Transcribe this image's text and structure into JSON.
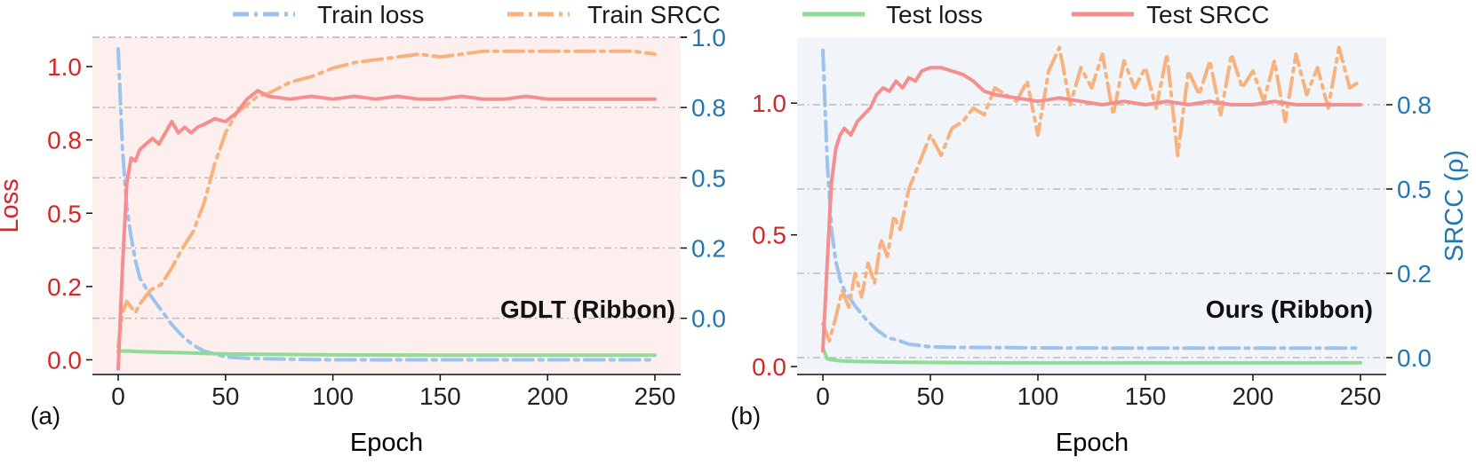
{
  "colors": {
    "train_loss": "#9cc3ee",
    "train_srcc": "#f9b27e",
    "test_loss": "#8fdc96",
    "test_srcc": "#f58f8f",
    "loss_axis": "#d62728",
    "srcc_axis": "#1f77b4",
    "bg_a": "#fcefee",
    "bg_b": "#f1f4f8",
    "gridline": "#bdbdbd"
  },
  "legend": {
    "train_loss": "Train loss",
    "train_srcc": "Train SRCC",
    "test_loss": "Test loss",
    "test_srcc": "Test SRCC"
  },
  "chart_data": [
    {
      "type": "line",
      "panel_label": "(a)",
      "annotation": "GDLT (Ribbon)",
      "xlabel": "Epoch",
      "ylabel_left": "Loss",
      "ylabel_right": "",
      "xlim": [
        -12,
        262
      ],
      "ylim_left": [
        -0.05,
        1.1
      ],
      "ylim_right": [
        -0.2,
        1.0
      ],
      "x_ticks": [
        0,
        50,
        100,
        150,
        200,
        250
      ],
      "left_ticks": [
        "0.0",
        "0.2",
        "0.5",
        "0.8",
        "1.0"
      ],
      "left_tick_values": [
        0.0,
        0.25,
        0.5,
        0.75,
        1.0
      ],
      "right_ticks": [
        "0.0",
        "0.2",
        "0.5",
        "0.8",
        "1.0"
      ],
      "right_tick_values": [
        0.0,
        0.25,
        0.5,
        0.75,
        1.0
      ],
      "grid": "dashed, at right-axis ticks",
      "series": [
        {
          "key": "train_loss",
          "axis": "left",
          "style": "dashdot",
          "x": [
            0,
            2,
            4,
            6,
            8,
            10,
            15,
            20,
            25,
            30,
            35,
            40,
            50,
            60,
            80,
            100,
            150,
            200,
            250
          ],
          "y": [
            1.06,
            0.72,
            0.52,
            0.42,
            0.34,
            0.28,
            0.22,
            0.17,
            0.12,
            0.08,
            0.05,
            0.03,
            0.01,
            0.005,
            0.002,
            0.0,
            0.0,
            0.0,
            0.0
          ]
        },
        {
          "key": "train_srcc",
          "axis": "right",
          "style": "dashdot",
          "x": [
            0,
            2,
            4,
            6,
            8,
            10,
            15,
            20,
            25,
            30,
            35,
            40,
            45,
            50,
            55,
            60,
            65,
            70,
            80,
            90,
            100,
            110,
            120,
            130,
            140,
            150,
            160,
            170,
            180,
            190,
            200,
            210,
            220,
            230,
            240,
            250
          ],
          "y": [
            -0.1,
            0.02,
            0.06,
            0.04,
            0.02,
            0.05,
            0.1,
            0.12,
            0.18,
            0.25,
            0.31,
            0.41,
            0.55,
            0.66,
            0.73,
            0.76,
            0.79,
            0.8,
            0.84,
            0.86,
            0.89,
            0.91,
            0.92,
            0.93,
            0.94,
            0.93,
            0.94,
            0.95,
            0.95,
            0.95,
            0.95,
            0.95,
            0.95,
            0.95,
            0.95,
            0.94
          ]
        },
        {
          "key": "test_loss",
          "axis": "left",
          "style": "solid",
          "x": [
            0,
            5,
            10,
            20,
            30,
            40,
            50,
            100,
            150,
            200,
            250
          ],
          "y": [
            0.03,
            0.03,
            0.028,
            0.026,
            0.024,
            0.022,
            0.02,
            0.017,
            0.016,
            0.016,
            0.016
          ]
        },
        {
          "key": "test_srcc",
          "axis": "right",
          "style": "solid",
          "x": [
            0,
            2,
            4,
            6,
            8,
            10,
            13,
            16,
            19,
            22,
            25,
            28,
            31,
            34,
            37,
            40,
            45,
            50,
            55,
            60,
            65,
            70,
            80,
            90,
            100,
            110,
            120,
            130,
            140,
            150,
            160,
            170,
            180,
            190,
            200,
            210,
            220,
            230,
            240,
            250
          ],
          "y": [
            -0.18,
            0.18,
            0.48,
            0.57,
            0.56,
            0.6,
            0.62,
            0.64,
            0.62,
            0.66,
            0.7,
            0.66,
            0.68,
            0.66,
            0.68,
            0.69,
            0.71,
            0.7,
            0.73,
            0.78,
            0.81,
            0.79,
            0.78,
            0.79,
            0.78,
            0.79,
            0.78,
            0.79,
            0.78,
            0.78,
            0.79,
            0.78,
            0.78,
            0.79,
            0.78,
            0.78,
            0.78,
            0.78,
            0.78,
            0.78
          ]
        }
      ]
    },
    {
      "type": "line",
      "panel_label": "(b)",
      "annotation": "Ours (Ribbon)",
      "xlabel": "Epoch",
      "ylabel_left": "",
      "ylabel_right": "SRCC (ρ)",
      "xlim": [
        -12,
        262
      ],
      "ylim_left": [
        -0.03,
        1.25
      ],
      "ylim_right": [
        -0.05,
        0.95
      ],
      "x_ticks": [
        0,
        50,
        100,
        150,
        200,
        250
      ],
      "left_ticks": [
        "0.0",
        "0.5",
        "1.0"
      ],
      "left_tick_values": [
        0.0,
        0.5,
        1.0
      ],
      "right_ticks": [
        "0.0",
        "0.2",
        "0.5",
        "0.8"
      ],
      "right_tick_values": [
        0.0,
        0.25,
        0.5,
        0.75
      ],
      "grid": "dashed, at right-axis ticks",
      "series": [
        {
          "key": "train_loss",
          "axis": "left",
          "style": "dashdot",
          "x": [
            0,
            2,
            4,
            6,
            8,
            10,
            15,
            20,
            25,
            30,
            35,
            40,
            45,
            50,
            60,
            80,
            100,
            150,
            200,
            250
          ],
          "y": [
            1.2,
            0.78,
            0.52,
            0.4,
            0.33,
            0.29,
            0.23,
            0.18,
            0.14,
            0.11,
            0.1,
            0.085,
            0.08,
            0.075,
            0.073,
            0.072,
            0.071,
            0.07,
            0.07,
            0.07
          ]
        },
        {
          "key": "train_srcc",
          "axis": "right",
          "style": "dashdot",
          "x": [
            0,
            3,
            6,
            9,
            12,
            15,
            18,
            21,
            24,
            27,
            30,
            33,
            36,
            40,
            45,
            50,
            55,
            60,
            65,
            70,
            75,
            80,
            85,
            90,
            95,
            100,
            105,
            110,
            115,
            120,
            125,
            130,
            135,
            140,
            145,
            150,
            155,
            160,
            165,
            170,
            175,
            180,
            185,
            190,
            195,
            200,
            205,
            210,
            215,
            220,
            225,
            230,
            235,
            240,
            245,
            250
          ],
          "y": [
            0.1,
            0.05,
            0.12,
            0.2,
            0.15,
            0.25,
            0.18,
            0.28,
            0.22,
            0.35,
            0.3,
            0.42,
            0.38,
            0.5,
            0.58,
            0.66,
            0.6,
            0.68,
            0.7,
            0.74,
            0.72,
            0.8,
            0.78,
            0.76,
            0.82,
            0.66,
            0.85,
            0.92,
            0.75,
            0.86,
            0.8,
            0.9,
            0.72,
            0.88,
            0.8,
            0.86,
            0.74,
            0.9,
            0.6,
            0.85,
            0.78,
            0.88,
            0.72,
            0.9,
            0.8,
            0.85,
            0.76,
            0.88,
            0.7,
            0.9,
            0.78,
            0.86,
            0.74,
            0.92,
            0.8,
            0.82
          ]
        },
        {
          "key": "test_loss",
          "axis": "left",
          "style": "solid",
          "x": [
            0,
            2,
            4,
            8,
            15,
            25,
            40,
            60,
            100,
            150,
            200,
            250
          ],
          "y": [
            0.07,
            0.03,
            0.026,
            0.022,
            0.02,
            0.018,
            0.016,
            0.015,
            0.014,
            0.014,
            0.014,
            0.014
          ]
        },
        {
          "key": "test_srcc",
          "axis": "right",
          "style": "solid",
          "x": [
            0,
            2,
            4,
            6,
            8,
            10,
            13,
            16,
            19,
            22,
            25,
            28,
            31,
            34,
            37,
            40,
            43,
            46,
            50,
            55,
            60,
            65,
            70,
            75,
            80,
            90,
            100,
            110,
            120,
            130,
            140,
            150,
            160,
            170,
            180,
            190,
            200,
            210,
            220,
            230,
            240,
            250
          ],
          "y": [
            0.02,
            0.28,
            0.52,
            0.62,
            0.66,
            0.68,
            0.66,
            0.7,
            0.72,
            0.74,
            0.78,
            0.8,
            0.79,
            0.82,
            0.8,
            0.83,
            0.82,
            0.85,
            0.86,
            0.86,
            0.85,
            0.84,
            0.82,
            0.79,
            0.78,
            0.77,
            0.76,
            0.77,
            0.76,
            0.75,
            0.76,
            0.75,
            0.76,
            0.75,
            0.76,
            0.75,
            0.75,
            0.76,
            0.75,
            0.75,
            0.75,
            0.75
          ]
        }
      ]
    }
  ]
}
